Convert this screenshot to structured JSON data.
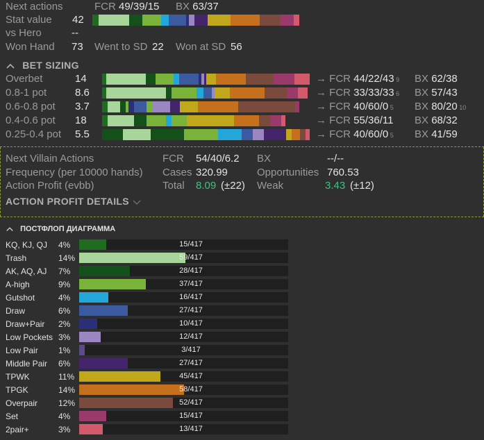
{
  "next_actions": {
    "label": "Next actions",
    "fcr": "FCR 49/39/15",
    "bx": "BX 63/37"
  },
  "stat_value": {
    "label": "Stat value",
    "value": "42"
  },
  "vs_hero": {
    "label": "vs Hero",
    "value": "--"
  },
  "won_hand": {
    "label": "Won Hand",
    "value": "73",
    "went_label": "Went to SD",
    "went_value": "22",
    "wsd_label": "Won at SD",
    "wsd_value": "56"
  },
  "bet_sizing": {
    "title": "BET SIZING",
    "rows": [
      {
        "label": "Overbet",
        "value": "14",
        "fcr": "44/22/43",
        "fcr_sub": "9",
        "bx": "62/38",
        "bx_sub": ""
      },
      {
        "label": "0.8-1 pot",
        "value": "8.6",
        "fcr": "33/33/33",
        "fcr_sub": "6",
        "bx": "57/43",
        "bx_sub": ""
      },
      {
        "label": "0.6-0.8 pot",
        "value": "3.7",
        "fcr": "40/60/0",
        "fcr_sub": "5",
        "bx": "80/20",
        "bx_sub": "10"
      },
      {
        "label": "0.4-0.6 pot",
        "value": "18",
        "fcr": "55/36/11",
        "fcr_sub": "",
        "bx": "68/32",
        "bx_sub": ""
      },
      {
        "label": "0.25-0.4 pot",
        "value": "5.5",
        "fcr": "40/60/0",
        "fcr_sub": "5",
        "bx": "41/59",
        "bx_sub": ""
      }
    ],
    "arrow": "→ FCR",
    "bx_prefix": "BX"
  },
  "villain": {
    "title": "Next Villain Actions",
    "fcr_label": "FCR",
    "fcr_value": "54/40/6.2",
    "bx_label": "BX",
    "bx_value": "--/--",
    "freq_label": "Frequency (per 10000 hands)",
    "cases_label": "Cases",
    "cases_value": "320.99",
    "opp_label": "Opportunities",
    "opp_value": "760.53",
    "profit_label": "Action Profit (evbb)",
    "total_label": "Total",
    "total_value": "8.09",
    "total_err": "(±22)",
    "weak_label": "Weak",
    "weak_value": "3.43",
    "weak_err": "(±12)",
    "details_label": "ACTION PROFIT DETAILS"
  },
  "postflop": {
    "title": "ПОСТФЛОП ДИАГРАММА",
    "total": 417,
    "rows": [
      {
        "label": "KQ, KJ, QJ",
        "pct": "4%",
        "count": "15/417",
        "n": 15,
        "color": "#1f6b1f"
      },
      {
        "label": "Trash",
        "pct": "14%",
        "count": "59/417",
        "n": 59,
        "color": "#a8d59a"
      },
      {
        "label": "AK, AQ, AJ",
        "pct": "7%",
        "count": "28/417",
        "n": 28,
        "color": "#14501a"
      },
      {
        "label": "A-high",
        "pct": "9%",
        "count": "37/417",
        "n": 37,
        "color": "#7ab33a"
      },
      {
        "label": "Gutshot",
        "pct": "4%",
        "count": "16/417",
        "n": 16,
        "color": "#22a7d8"
      },
      {
        "label": "Draw",
        "pct": "6%",
        "count": "27/417",
        "n": 27,
        "color": "#3c5aa0"
      },
      {
        "label": "Draw+Pair",
        "pct": "2%",
        "count": "10/417",
        "n": 10,
        "color": "#2a2f7a"
      },
      {
        "label": "Low Pockets",
        "pct": "3%",
        "count": "12/417",
        "n": 12,
        "color": "#9a86c0"
      },
      {
        "label": "Low Pair",
        "pct": "1%",
        "count": "3/417",
        "n": 3,
        "color": "#5c4a8c"
      },
      {
        "label": "Middle Pair",
        "pct": "6%",
        "count": "27/417",
        "n": 27,
        "color": "#44246a"
      },
      {
        "label": "TPWK",
        "pct": "11%",
        "count": "45/417",
        "n": 45,
        "color": "#c0a81a"
      },
      {
        "label": "TPGK",
        "pct": "14%",
        "count": "58/417",
        "n": 58,
        "color": "#c4701c"
      },
      {
        "label": "Overpair",
        "pct": "12%",
        "count": "52/417",
        "n": 52,
        "color": "#7a4a3c"
      },
      {
        "label": "Set",
        "pct": "4%",
        "count": "15/417",
        "n": 15,
        "color": "#9a3a6a"
      },
      {
        "label": "2pair+",
        "pct": "3%",
        "count": "13/417",
        "n": 13,
        "color": "#d25a6a"
      }
    ]
  },
  "colors": {
    "accent_green": "#3fc281",
    "dashed_border": "#8aa035"
  }
}
